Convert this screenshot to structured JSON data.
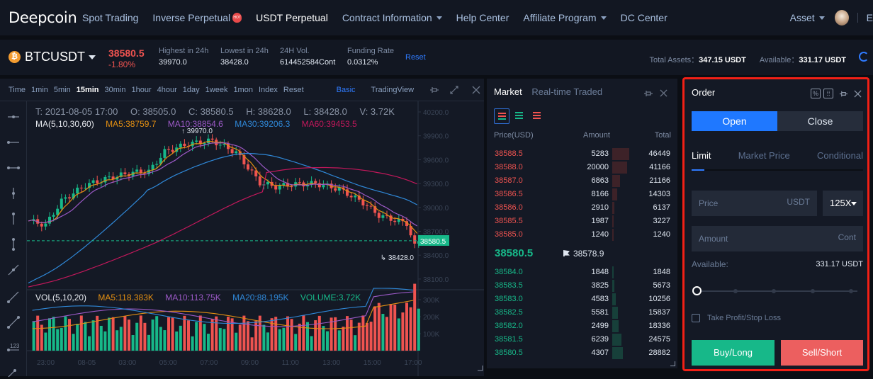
{
  "nav": {
    "logo": "Deepcoin",
    "items": [
      {
        "label": "Spot Trading"
      },
      {
        "label": "Inverse Perpetual",
        "badge": "HOT"
      },
      {
        "label": "USDT Perpetual",
        "active": true
      },
      {
        "label": "Contract Information",
        "dropdown": true
      },
      {
        "label": "Help Center"
      },
      {
        "label": "Affiliate Program",
        "dropdown": true
      },
      {
        "label": "DC Center"
      }
    ],
    "asset_label": "Asset",
    "overflow_text": "E"
  },
  "ticker": {
    "symbol": "BTCUSDT",
    "coin_icon": "bitcoin-icon",
    "last_price": "38580.5",
    "change": "-1.80%",
    "stats": [
      {
        "label": "Highest in 24h",
        "value": "39970.0"
      },
      {
        "label": "Lowest in 24h",
        "value": "38428.0"
      },
      {
        "label": "24H Vol.",
        "value": "614452584Cont"
      },
      {
        "label": "Funding Rate",
        "value": "0.0312%"
      }
    ],
    "reset_label": "Reset",
    "total_assets_label": "Total Assets：",
    "total_assets_value": "347.15 USDT",
    "available_label": "Available：",
    "available_value": "331.17 USDT"
  },
  "chart": {
    "timeframes": [
      "Time",
      "1min",
      "5min",
      "15min",
      "30min",
      "1hour",
      "4hour",
      "1day",
      "1week",
      "1mon",
      "Index",
      "Reset"
    ],
    "active_timeframe": "15min",
    "views": [
      "Basic",
      "TradingView"
    ],
    "active_view": "Basic",
    "ohlc": {
      "t": "T: 2021-08-05 17:00",
      "o": "O: 38505.0",
      "c": "C: 38580.5",
      "h": "H: 38628.0",
      "l": "L: 38428.0",
      "v": "V: 3.72K"
    },
    "ma": {
      "label": "MA(5,10,30,60)",
      "ma5": "MA5:38759.7",
      "ma10": "MA10:38854.6",
      "ma30": "MA30:39206.3",
      "ma60": "MA60:39453.5"
    },
    "vol": {
      "label": "VOL(5,10,20)",
      "ma5": "MA5:118.383K",
      "ma10": "MA10:113.75K",
      "ma20": "MA20:88.195K",
      "volume": "VOLUME:3.72K"
    },
    "high_marker": "39970.0",
    "low_marker": "38428.0",
    "current_price_tag": "38580.5",
    "price_axis": [
      "40200.0",
      "39900.0",
      "39600.0",
      "39300.0",
      "39000.0",
      "38700.0",
      "38400.0",
      "38100.0"
    ],
    "volume_axis": [
      "300K",
      "200K",
      "100K"
    ],
    "time_axis": [
      "23:00",
      "08-05",
      "03:00",
      "05:00",
      "07:00",
      "09:00",
      "11:00",
      "13:00",
      "15:00",
      "17:00"
    ],
    "colors": {
      "up": "#17b889",
      "down": "#ef5350",
      "ma5": "#e38f12",
      "ma10": "#9b59c6",
      "ma30": "#2f88d8",
      "ma60": "#c2185b"
    }
  },
  "orderbook": {
    "tabs": [
      "Market",
      "Real-time Traded"
    ],
    "active_tab": "Market",
    "headers": {
      "price": "Price(USD)",
      "amount": "Amount",
      "total": "Total"
    },
    "asks": [
      {
        "price": "38588.5",
        "amount": "5283",
        "total": "46449"
      },
      {
        "price": "38588.0",
        "amount": "20000",
        "total": "41166"
      },
      {
        "price": "38587.0",
        "amount": "6863",
        "total": "21166"
      },
      {
        "price": "38586.5",
        "amount": "8166",
        "total": "14303"
      },
      {
        "price": "38586.0",
        "amount": "2910",
        "total": "6137"
      },
      {
        "price": "38585.5",
        "amount": "1987",
        "total": "3227"
      },
      {
        "price": "38585.0",
        "amount": "1240",
        "total": "1240"
      }
    ],
    "last_price": "38580.5",
    "mark_price": "38578.9",
    "bids": [
      {
        "price": "38584.0",
        "amount": "1848",
        "total": "1848"
      },
      {
        "price": "38583.5",
        "amount": "3825",
        "total": "5673"
      },
      {
        "price": "38583.0",
        "amount": "4583",
        "total": "10256"
      },
      {
        "price": "38582.5",
        "amount": "5581",
        "total": "15837"
      },
      {
        "price": "38582.0",
        "amount": "2499",
        "total": "18336"
      },
      {
        "price": "38581.5",
        "amount": "6239",
        "total": "24575"
      },
      {
        "price": "38580.5",
        "amount": "4307",
        "total": "28882"
      }
    ]
  },
  "order": {
    "title": "Order",
    "side_tabs": [
      "Open",
      "Close"
    ],
    "active_side": "Open",
    "types": [
      "Limit",
      "Market Price",
      "Conditional"
    ],
    "active_type": "Limit",
    "price_placeholder": "Price",
    "price_unit": "USDT",
    "leverage": "125X",
    "amount_placeholder": "Amount",
    "amount_unit": "Cont",
    "available_label": "Available:",
    "available_value": "331.17 USDT",
    "slider_percent": 0,
    "tp_sl_label": "Take Profit/Stop Loss",
    "buy_label": "Buy/Long",
    "sell_label": "Sell/Short"
  }
}
